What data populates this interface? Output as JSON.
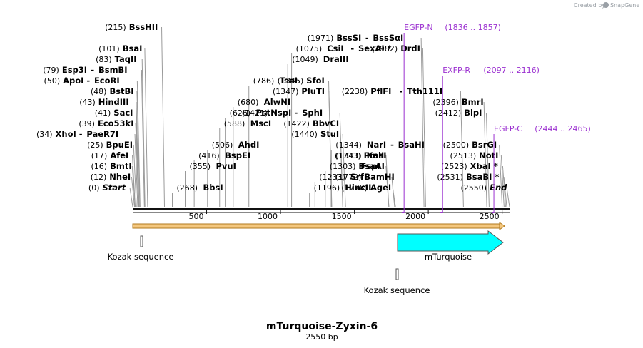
{
  "header": {
    "credit": "Created by",
    "brand": "SnapGene"
  },
  "map": {
    "title": "mTurquoise-Zyxin-6",
    "length_label": "2550 bp",
    "length": 2550,
    "ticks": [
      500,
      1000,
      1500,
      2000,
      2500
    ],
    "sites": [
      {
        "name": "Start",
        "pos": "(0)",
        "bp": 0,
        "italic": true,
        "side": "left",
        "row": 0
      },
      {
        "name": "NheI",
        "pos": "(12)",
        "bp": 12,
        "side": "left",
        "row": 1
      },
      {
        "name": "BmtI",
        "pos": "(16)",
        "bp": 16,
        "side": "left",
        "row": 2
      },
      {
        "name": "AfeI",
        "pos": "(17)",
        "bp": 17,
        "side": "left",
        "row": 3
      },
      {
        "name": "BpuEI",
        "pos": "(25)",
        "bp": 25,
        "side": "left",
        "row": 4
      },
      {
        "name": "XhoI",
        "pos": "(34)",
        "bp": 34,
        "side": "left",
        "row": 5,
        "alias": "PaeR7I"
      },
      {
        "name": "Eco53kI",
        "pos": "(39)",
        "bp": 39,
        "side": "left",
        "row": 6
      },
      {
        "name": "SacI",
        "pos": "(41)",
        "bp": 41,
        "side": "left",
        "row": 7
      },
      {
        "name": "HindIII",
        "pos": "(43)",
        "bp": 43,
        "side": "left",
        "row": 8
      },
      {
        "name": "BstBI",
        "pos": "(48)",
        "bp": 48,
        "side": "left",
        "row": 9
      },
      {
        "name": "ApoI",
        "pos": "(50)",
        "bp": 50,
        "side": "left",
        "row": 10,
        "alias": "EcoRI"
      },
      {
        "name": "Esp3I",
        "pos": "(79)",
        "bp": 79,
        "side": "left",
        "row": 11,
        "alias": "BsmBI"
      },
      {
        "name": "TaqII",
        "pos": "(83)",
        "bp": 83,
        "side": "left",
        "row": 12
      },
      {
        "name": "BsaI",
        "pos": "(101)",
        "bp": 101,
        "side": "left",
        "row": 13
      },
      {
        "name": "BssHII",
        "pos": "(215)",
        "bp": 215,
        "side": "left",
        "row": 15
      },
      {
        "name": "BbsI",
        "pos": "(268)",
        "bp": 268,
        "side": "right",
        "row": 0
      },
      {
        "name": "PvuI",
        "pos": "(355)",
        "bp": 355,
        "side": "right",
        "row": 2
      },
      {
        "name": "BspEI",
        "pos": "(416)",
        "bp": 416,
        "side": "right",
        "row": 3
      },
      {
        "name": "AhdI",
        "pos": "(506)",
        "bp": 506,
        "side": "right",
        "row": 4
      },
      {
        "name": "MscI",
        "pos": "(588)",
        "bp": 588,
        "side": "right",
        "row": 6
      },
      {
        "name": "PstI",
        "pos": "(626)",
        "bp": 626,
        "side": "right",
        "row": 7
      },
      {
        "name": "AlwNI",
        "pos": "(680)",
        "bp": 680,
        "side": "right",
        "row": 8
      },
      {
        "name": "TsoI",
        "pos": "(786)",
        "bp": 786,
        "side": "right",
        "row": 10
      },
      {
        "name": "DraIII",
        "pos": "(1049)",
        "bp": 1049,
        "side": "right",
        "row": 12
      },
      {
        "name": "CsiI",
        "pos": "(1075)",
        "bp": 1075,
        "side": "right",
        "row": 13,
        "alias": "SexAI *"
      },
      {
        "name": "HincII",
        "pos": "(1196)",
        "bp": 1196,
        "side": "right",
        "row": 0
      },
      {
        "name": "SrfI",
        "pos": "(1233)",
        "bp": 1233,
        "side": "right",
        "row": 1
      },
      {
        "name": "FspI",
        "pos": "(1303)",
        "bp": 1303,
        "side": "right",
        "row": 2
      },
      {
        "name": "KasI",
        "pos": "(1343)",
        "bp": 1343,
        "side": "right",
        "row": 3
      },
      {
        "name": "NarI",
        "pos": "(1344)",
        "bp": 1344,
        "side": "right",
        "row": 4,
        "alias": "BsaHI"
      },
      {
        "name": "StuI",
        "pos": "(1440)",
        "bp": 1440,
        "side": "left",
        "row": 5
      },
      {
        "name": "BbvCI",
        "pos": "(1422)",
        "bp": 1422,
        "side": "left",
        "row": 6
      },
      {
        "name": "NspI",
        "pos": "(1421)",
        "bp": 1421,
        "side": "left",
        "row": 7,
        "alias": "SphI"
      },
      {
        "name": "PluTI",
        "pos": "(1347)",
        "bp": 1347,
        "side": "left",
        "row": 9
      },
      {
        "name": "SfoI",
        "pos": "(1345)",
        "bp": 1345,
        "side": "left",
        "row": 10
      },
      {
        "name": "AgeI",
        "pos": "(1778)",
        "bp": 1778,
        "side": "left",
        "row": 0
      },
      {
        "name": "BamHI",
        "pos": "(1772)",
        "bp": 1772,
        "side": "left",
        "row": 1
      },
      {
        "name": "BsaAI",
        "pos": "",
        "bp": 1733,
        "side": "left",
        "row": 2
      },
      {
        "name": "PmlI",
        "pos": "(1733)",
        "bp": 1733,
        "side": "left",
        "row": 3
      },
      {
        "name": "PflFI",
        "pos": "(2238)",
        "bp": 2238,
        "side": "left",
        "row": 9,
        "alias": "Tth111I"
      },
      {
        "name": "DrdI",
        "pos": "(1982)",
        "bp": 1982,
        "side": "left",
        "row": 13
      },
      {
        "name": "BssSI",
        "pos": "(1971)",
        "bp": 1971,
        "side": "left",
        "row": 14,
        "alias": "BssSαI"
      },
      {
        "name": "End",
        "pos": "(2550)",
        "bp": 2550,
        "italic": true,
        "side": "left",
        "row": 0
      },
      {
        "name": "BsaBI *",
        "pos": "(2531)",
        "bp": 2531,
        "side": "left",
        "row": 1
      },
      {
        "name": "XbaI *",
        "pos": "(2523)",
        "bp": 2523,
        "side": "left",
        "row": 2
      },
      {
        "name": "NotI",
        "pos": "(2513)",
        "bp": 2513,
        "side": "left",
        "row": 3
      },
      {
        "name": "BsrGI",
        "pos": "(2500)",
        "bp": 2500,
        "side": "left",
        "row": 4
      },
      {
        "name": "BlpI",
        "pos": "(2412)",
        "bp": 2412,
        "side": "left",
        "row": 7
      },
      {
        "name": "BmrI",
        "pos": "(2396)",
        "bp": 2396,
        "side": "left",
        "row": 8
      }
    ],
    "primers": [
      {
        "name": "EGFP-N",
        "range": "(1836 .. 1857)",
        "bp": 1836
      },
      {
        "name": "EXFP-R",
        "range": "(2097 .. 2116)",
        "bp": 2097
      },
      {
        "name": "EGFP-C",
        "range": "(2444 .. 2465)",
        "bp": 2444
      }
    ],
    "features": [
      {
        "name": "Kozak sequence",
        "bp": 60
      },
      {
        "name": "mTurquoise",
        "start": 1790,
        "end": 2550
      },
      {
        "name": "Kozak sequence",
        "bp": 1785
      }
    ]
  }
}
